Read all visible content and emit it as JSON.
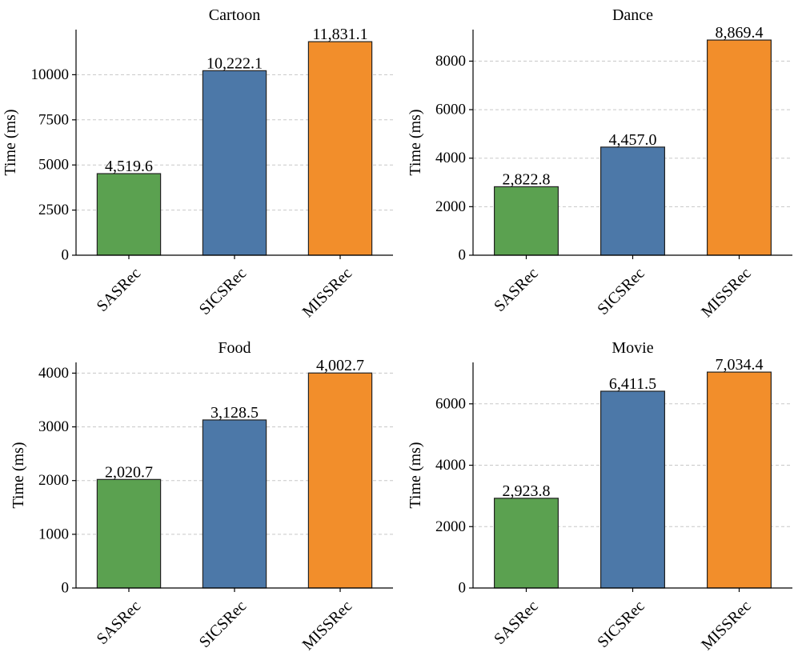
{
  "chart_data": [
    {
      "type": "bar",
      "title": "Cartoon",
      "ylabel": "Time (ms)",
      "categories": [
        "SASRec",
        "SICSRec",
        "MISSRec"
      ],
      "values": [
        4519.6,
        10222.1,
        11831.1
      ],
      "value_labels": [
        "4,519.6",
        "10,222.1",
        "11,831.1"
      ],
      "ylim": [
        0,
        12500
      ],
      "yticks": [
        0,
        2500,
        5000,
        7500,
        10000
      ],
      "grid": true
    },
    {
      "type": "bar",
      "title": "Dance",
      "ylabel": "Time (ms)",
      "categories": [
        "SASRec",
        "SICSRec",
        "MISSRec"
      ],
      "values": [
        2822.8,
        4457.0,
        8869.4
      ],
      "value_labels": [
        "2,822.8",
        "4,457.0",
        "8,869.4"
      ],
      "ylim": [
        0,
        9300
      ],
      "yticks": [
        0,
        2000,
        4000,
        6000,
        8000
      ],
      "grid": true
    },
    {
      "type": "bar",
      "title": "Food",
      "ylabel": "Time (ms)",
      "categories": [
        "SASRec",
        "SICSRec",
        "MISSRec"
      ],
      "values": [
        2020.7,
        3128.5,
        4002.7
      ],
      "value_labels": [
        "2,020.7",
        "3,128.5",
        "4,002.7"
      ],
      "ylim": [
        0,
        4200
      ],
      "yticks": [
        0,
        1000,
        2000,
        3000,
        4000
      ],
      "grid": true
    },
    {
      "type": "bar",
      "title": "Movie",
      "ylabel": "Time (ms)",
      "categories": [
        "SASRec",
        "SICSRec",
        "MISSRec"
      ],
      "values": [
        2923.8,
        6411.5,
        7034.4
      ],
      "value_labels": [
        "2,923.8",
        "6,411.5",
        "7,034.4"
      ],
      "ylim": [
        0,
        7350
      ],
      "yticks": [
        0,
        2000,
        4000,
        6000
      ],
      "grid": true
    }
  ],
  "colors": [
    "#5ba150",
    "#4c78a8",
    "#f28e2b"
  ]
}
